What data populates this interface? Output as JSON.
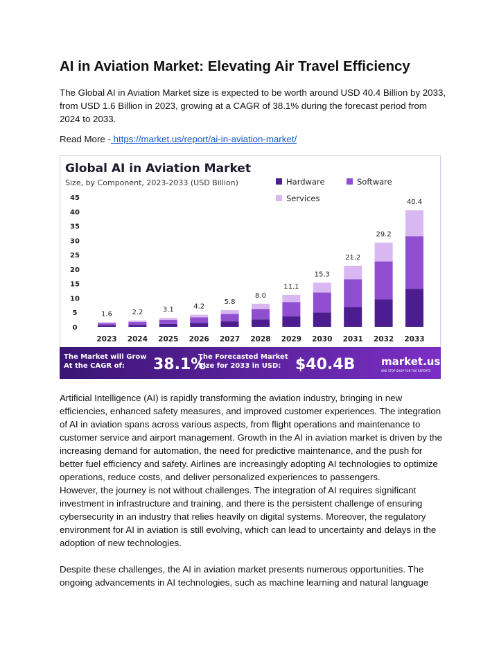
{
  "document": {
    "title": "AI in Aviation Market: Elevating Air Travel Efficiency",
    "intro": "The Global AI in Aviation Market size is expected to be worth around USD 40.4 Billion by 2033, from USD 1.6 Billion in 2023, growing at a CAGR of 38.1% during the forecast period from 2024 to 2033.",
    "read_more": {
      "label": "Read More -",
      "url": "https://market.us/report/ai-in-aviation-market/"
    },
    "paragraphs": [
      "Artificial Intelligence (AI) is rapidly transforming the aviation industry, bringing in new efficiencies, enhanced safety measures, and improved customer experiences. The integration of AI in aviation spans across various aspects, from flight operations and maintenance to customer service and airport management. Growth in the AI in aviation market is driven by the increasing demand for automation, the need for predictive maintenance, and the push for better fuel efficiency and safety. Airlines are increasingly adopting AI technologies to optimize operations, reduce costs, and deliver personalized experiences to passengers.",
      "However, the journey is not without challenges. The integration of AI requires significant investment in infrastructure and training, and there is the persistent challenge of ensuring cybersecurity in an industry that relies heavily on digital systems. Moreover, the regulatory environment for AI in aviation is still evolving, which can lead to uncertainty and delays in the adoption of new technologies.",
      "Despite these challenges, the AI in aviation market presents numerous opportunities. The ongoing advancements in AI technologies, such as machine learning and natural language"
    ]
  },
  "chart_data": {
    "type": "stacked-bar",
    "title": "Global AI in Aviation Market",
    "subtitle": "Size, by Component, 2023-2033 (USD Billion)",
    "categories": [
      "2023",
      "2024",
      "2025",
      "2026",
      "2027",
      "2028",
      "2029",
      "2030",
      "2031",
      "2032",
      "2033"
    ],
    "series": [
      {
        "name": "Hardware",
        "color": "#4b1d8f",
        "values": [
          0.5,
          0.7,
          1.0,
          1.4,
          1.9,
          2.6,
          3.6,
          5.0,
          6.9,
          9.5,
          13.2
        ]
      },
      {
        "name": "Software",
        "color": "#8f4fd0",
        "values": [
          0.7,
          1.0,
          1.4,
          1.9,
          2.6,
          3.6,
          5.0,
          6.9,
          9.6,
          13.2,
          18.2
        ]
      },
      {
        "name": "Services",
        "color": "#d9b8f2",
        "values": [
          0.4,
          0.5,
          0.7,
          0.9,
          1.3,
          1.8,
          2.5,
          3.4,
          4.7,
          6.5,
          9.0
        ]
      }
    ],
    "totals": [
      1.6,
      2.2,
      3.1,
      4.2,
      5.8,
      8.0,
      11.1,
      15.3,
      21.2,
      29.2,
      40.4
    ],
    "value_labels": [
      "1.6",
      "2.2",
      "3.1",
      "4.2",
      "5.8",
      "8.0",
      "11.1",
      "15.3",
      "21.2",
      "29.2",
      "40.4"
    ],
    "ylim": [
      0,
      45
    ],
    "yticks": [
      0,
      5,
      10,
      15,
      20,
      25,
      30,
      35,
      40,
      45
    ],
    "banner": {
      "cagr_text": "The Market will Grow At the CAGR of:",
      "cagr": "38.1%",
      "forecast_text": "The Forecasted Market Size for 2033 in USD:",
      "forecast": "$40.4B",
      "brand": "market.us",
      "tagline": "ONE STOP SHOP FOR THE REPORTS"
    }
  }
}
